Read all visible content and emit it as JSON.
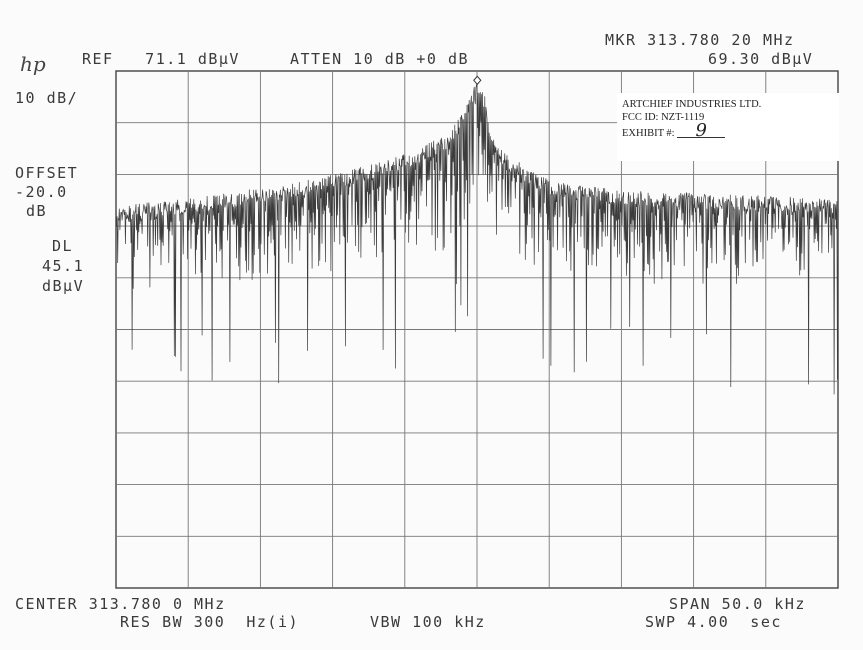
{
  "header": {
    "logo": "hp",
    "ref": "REF   71.1 dBµV",
    "atten": "ATTEN 10 dB +0 dB",
    "marker_label": "MKR 313.780 20 MHz",
    "marker_value": "69.30 dBµV"
  },
  "left_panel": {
    "scale": "10 dB/",
    "offset_label": "OFFSET",
    "offset_value": "-20.0",
    "offset_unit": "dB",
    "dl_label": "DL",
    "dl_value": "45.1",
    "dl_unit": "dBµV"
  },
  "footer": {
    "center": "CENTER 313.780 0 MHz",
    "span": "SPAN 50.0 kHz",
    "res_bw": "RES BW 300  Hz(i)",
    "vbw": "VBW 100 kHz",
    "sweep": "SWP 4.00  sec"
  },
  "exhibit": {
    "company": "ARTCHIEF INDUSTRIES LTD.",
    "fcc_id": "FCC ID: NZT-1119",
    "exhibit_label": "EXHIBIT #:",
    "exhibit_number": "9"
  },
  "chart_data": {
    "type": "line",
    "title": "",
    "xlabel": "",
    "ylabel": "",
    "x_center_mhz": 313.78,
    "x_span_khz": 50.0,
    "xlim_khz_offset": [
      -25,
      25
    ],
    "ylim_dbuv": [
      -28.9,
      71.1
    ],
    "y_divisions": 10,
    "x_divisions": 10,
    "grid": true,
    "series": [
      {
        "x_khz_offset": [
          -25,
          -20,
          -15,
          -10,
          -5,
          -2,
          -1,
          0,
          0.5,
          1,
          2,
          5,
          10,
          15,
          20,
          25
        ],
        "envelope_peak_dbuv": [
          45,
          46.5,
          48.5,
          51,
          55,
          59,
          63,
          69.3,
          67,
          60,
          55,
          50,
          48,
          47.5,
          47,
          46.5
        ],
        "noise_floor_dbuv": [
          28,
          29,
          30,
          31,
          33,
          36,
          40,
          45,
          43,
          39,
          35,
          32,
          30,
          29,
          28.5,
          28
        ]
      }
    ],
    "marker": {
      "x_khz_offset": 0.02,
      "y_dbuv": 69.3
    },
    "display_line_dbuv": 45.1
  }
}
